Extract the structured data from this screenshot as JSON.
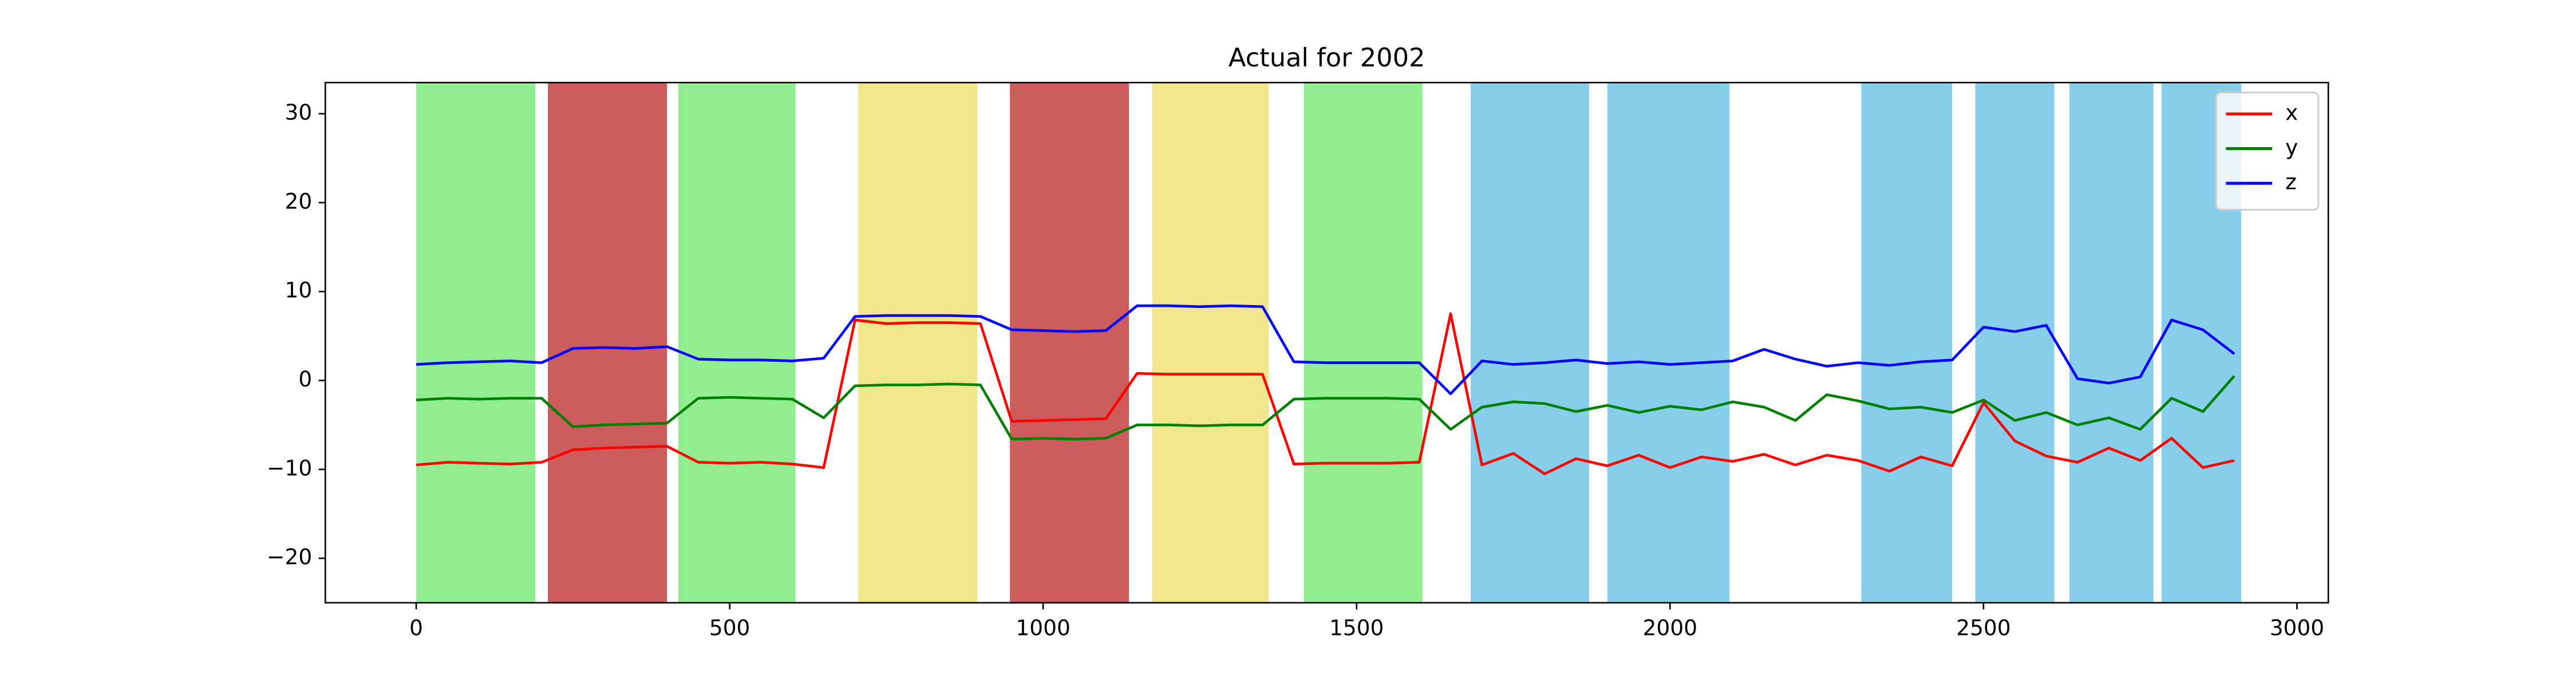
{
  "chart_data": {
    "type": "line",
    "title": "Actual for 2002",
    "x": [
      0,
      50,
      100,
      150,
      200,
      250,
      300,
      350,
      400,
      450,
      500,
      550,
      600,
      650,
      700,
      750,
      800,
      850,
      900,
      950,
      1000,
      1050,
      1100,
      1150,
      1200,
      1250,
      1300,
      1350,
      1400,
      1450,
      1500,
      1550,
      1600,
      1650,
      1700,
      1750,
      1800,
      1850,
      1900,
      1950,
      2000,
      2050,
      2100,
      2150,
      2200,
      2250,
      2300,
      2350,
      2400,
      2450,
      2500,
      2550,
      2600,
      2650,
      2700,
      2750,
      2800,
      2850,
      2900
    ],
    "series": [
      {
        "name": "x",
        "color": "#ff0000",
        "values": [
          -9.5,
          -9.2,
          -9.3,
          -9.4,
          -9.2,
          -7.8,
          -7.6,
          -7.5,
          -7.4,
          -9.2,
          -9.3,
          -9.2,
          -9.4,
          -9.8,
          6.8,
          6.4,
          6.5,
          6.5,
          6.4,
          -4.6,
          -4.5,
          -4.4,
          -4.3,
          0.8,
          0.7,
          0.7,
          0.7,
          0.7,
          -9.4,
          -9.3,
          -9.3,
          -9.3,
          -9.2,
          7.5,
          -9.5,
          -8.2,
          -10.5,
          -8.8,
          -9.6,
          -8.4,
          -9.8,
          -8.6,
          -9.1,
          -8.3,
          -9.5,
          -8.4,
          -9.0,
          -10.2,
          -8.6,
          -9.6,
          -2.5,
          -6.8,
          -8.5,
          -9.2,
          -7.6,
          -9.0,
          -6.5,
          -9.8,
          -9.0
        ]
      },
      {
        "name": "y",
        "color": "#008000",
        "values": [
          -2.2,
          -2.0,
          -2.1,
          -2.0,
          -2.0,
          -5.2,
          -5.0,
          -4.9,
          -4.8,
          -2.0,
          -1.9,
          -2.0,
          -2.1,
          -4.2,
          -0.6,
          -0.5,
          -0.5,
          -0.4,
          -0.5,
          -6.6,
          -6.5,
          -6.6,
          -6.5,
          -5.0,
          -5.0,
          -5.1,
          -5.0,
          -5.0,
          -2.1,
          -2.0,
          -2.0,
          -2.0,
          -2.1,
          -5.5,
          -3.0,
          -2.4,
          -2.6,
          -3.5,
          -2.8,
          -3.6,
          -2.9,
          -3.3,
          -2.4,
          -3.0,
          -4.5,
          -1.6,
          -2.3,
          -3.2,
          -3.0,
          -3.6,
          -2.2,
          -4.5,
          -3.6,
          -5.0,
          -4.2,
          -5.5,
          -2.0,
          -3.5,
          0.5
        ]
      },
      {
        "name": "z",
        "color": "#0000ff",
        "values": [
          1.8,
          2.0,
          2.1,
          2.2,
          2.0,
          3.6,
          3.7,
          3.6,
          3.8,
          2.4,
          2.3,
          2.3,
          2.2,
          2.5,
          7.2,
          7.3,
          7.3,
          7.3,
          7.2,
          5.7,
          5.6,
          5.5,
          5.6,
          8.4,
          8.4,
          8.3,
          8.4,
          8.3,
          2.1,
          2.0,
          2.0,
          2.0,
          2.0,
          -1.5,
          2.2,
          1.8,
          2.0,
          2.3,
          1.9,
          2.1,
          1.8,
          2.0,
          2.2,
          3.5,
          2.4,
          1.6,
          2.0,
          1.7,
          2.1,
          2.3,
          6.0,
          5.5,
          6.2,
          0.2,
          -0.3,
          0.4,
          6.8,
          5.7,
          3.0
        ]
      }
    ],
    "spans": [
      {
        "start": 0,
        "end": 190,
        "color": "#90ee90"
      },
      {
        "start": 210,
        "end": 400,
        "color": "#cd5c5c"
      },
      {
        "start": 418,
        "end": 605,
        "color": "#90ee90"
      },
      {
        "start": 705,
        "end": 895,
        "color": "#f0e68c"
      },
      {
        "start": 947,
        "end": 1137,
        "color": "#cd5c5c"
      },
      {
        "start": 1174,
        "end": 1360,
        "color": "#f0e68c"
      },
      {
        "start": 1416,
        "end": 1605,
        "color": "#90ee90"
      },
      {
        "start": 1682,
        "end": 1871,
        "color": "#87ceeb"
      },
      {
        "start": 1900,
        "end": 2095,
        "color": "#87ceeb"
      },
      {
        "start": 2305,
        "end": 2450,
        "color": "#87ceeb"
      },
      {
        "start": 2487,
        "end": 2613,
        "color": "#87ceeb"
      },
      {
        "start": 2637,
        "end": 2771,
        "color": "#87ceeb"
      },
      {
        "start": 2784,
        "end": 2911,
        "color": "#87ceeb"
      }
    ],
    "xlim": [
      -145,
      3050
    ],
    "ylim": [
      -25,
      33.5
    ],
    "xticks": [
      0,
      500,
      1000,
      1500,
      2000,
      2500,
      3000
    ],
    "yticks": [
      {
        "value": -20,
        "label": "−20"
      },
      {
        "value": -10,
        "label": "−10"
      },
      0,
      10,
      20,
      30
    ],
    "legend": "upper right"
  }
}
